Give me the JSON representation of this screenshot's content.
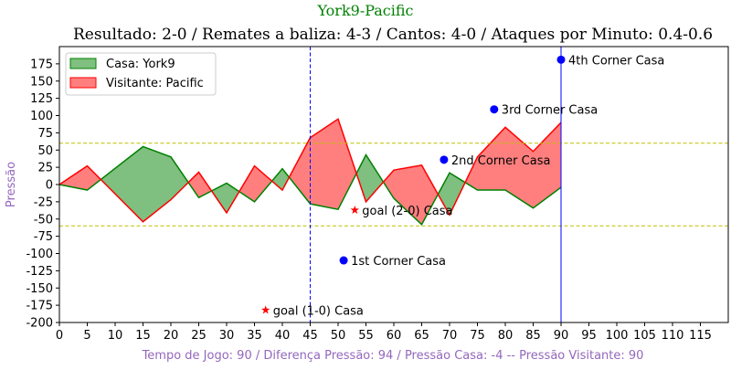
{
  "chart_data": {
    "type": "area",
    "suptitle": "York9-Pacific",
    "title": "Resultado: 2-0 / Remates a baliza: 4-3 / Cantos: 4-0 / Ataques por Minuto: 0.4-0.6",
    "xlabel": "Tempo de Jogo: 90 / Diferença Pressão: 94 / Pressão Casa: -4 -- Pressão Visitante: 90",
    "ylabel": "Pressão",
    "xlim": [
      0,
      120
    ],
    "ylim": [
      -200,
      200
    ],
    "xticks": [
      0,
      5,
      10,
      15,
      20,
      25,
      30,
      35,
      40,
      45,
      50,
      55,
      60,
      65,
      70,
      75,
      80,
      85,
      90,
      95,
      100,
      105,
      110,
      115
    ],
    "yticks": [
      -200,
      -175,
      -150,
      -125,
      -100,
      -75,
      -50,
      -25,
      0,
      25,
      50,
      75,
      100,
      125,
      150,
      175
    ],
    "grid": false,
    "legend_position": "top-left",
    "colors": {
      "home_line": "#008000",
      "home_fill": "#7fbf7f",
      "away_line": "#ff0000",
      "away_fill": "#ff7f7f",
      "threshold": "#bfbf00",
      "halftime": "#0000ff",
      "current": "#0000ff",
      "corner_marker": "#0000ff",
      "goal_marker": "#ff0000",
      "suptitle_color": "#008000",
      "xlabel_color": "#9467bd",
      "ylabel_color": "#9467bd"
    },
    "x": [
      0,
      5,
      15,
      20,
      25,
      30,
      35,
      40,
      45,
      50,
      55,
      60,
      65,
      70,
      75,
      80,
      85,
      90
    ],
    "series": [
      {
        "name": "Casa: York9",
        "role": "home",
        "values": [
          0,
          -8,
          55,
          40,
          -19,
          2,
          -25,
          23,
          -28,
          -36,
          43,
          -20,
          -58,
          17,
          -8,
          -8,
          -34,
          -4
        ]
      },
      {
        "name": "Visitante: Pacific",
        "role": "away",
        "values": [
          0,
          27,
          -54,
          -22,
          18,
          -41,
          27,
          -8,
          68,
          95,
          -25,
          21,
          28,
          -44,
          40,
          83,
          48,
          90
        ]
      }
    ],
    "threshold_lines": [
      60,
      -60
    ],
    "vertical_lines": [
      {
        "x": 45,
        "style": "dashed"
      },
      {
        "x": 90,
        "style": "solid"
      }
    ],
    "corners": [
      {
        "x": 51,
        "y": -110,
        "label": "1st Corner Casa"
      },
      {
        "x": 69,
        "y": 36,
        "label": "2nd Corner Casa"
      },
      {
        "x": 78,
        "y": 109,
        "label": "3rd Corner Casa"
      },
      {
        "x": 90,
        "y": 181,
        "label": "4th Corner Casa"
      }
    ],
    "goals": [
      {
        "x": 37,
        "y": -182,
        "label": "goal (1-0) Casa"
      },
      {
        "x": 53,
        "y": -37,
        "label": "goal (2-0) Casa"
      }
    ]
  }
}
